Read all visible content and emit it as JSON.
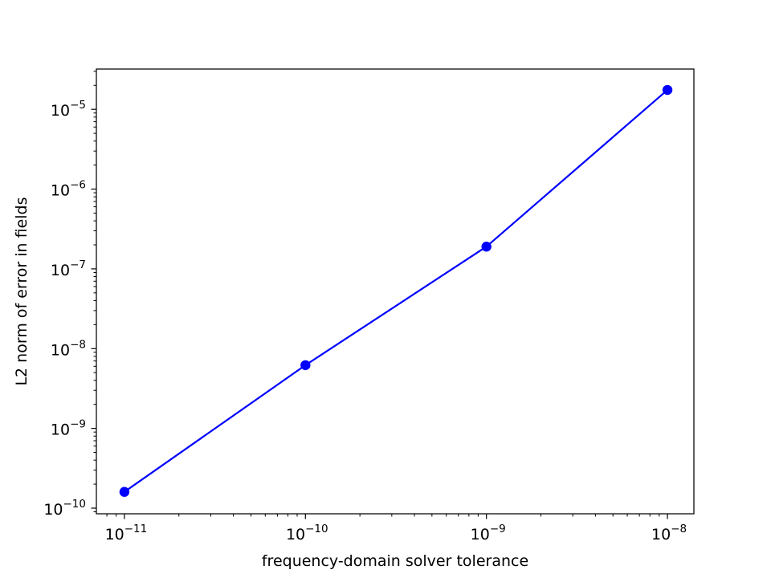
{
  "chart_data": {
    "type": "line",
    "title": "",
    "xlabel": "frequency-domain solver tolerance",
    "ylabel": "L2 norm of error in fields",
    "xscale": "log",
    "yscale": "log",
    "xlim": [
      7e-12,
      1.4e-08
    ],
    "ylim": [
      8.5e-11,
      3.2e-05
    ],
    "grid": false,
    "legend": "none",
    "x_ticks": [
      {
        "base": "10",
        "exp": "−11",
        "value": 1e-11
      },
      {
        "base": "10",
        "exp": "−10",
        "value": 1e-10
      },
      {
        "base": "10",
        "exp": "−9",
        "value": 1e-09
      },
      {
        "base": "10",
        "exp": "−8",
        "value": 1e-08
      }
    ],
    "y_ticks": [
      {
        "base": "10",
        "exp": "−10",
        "value": 1e-10
      },
      {
        "base": "10",
        "exp": "−9",
        "value": 1e-09
      },
      {
        "base": "10",
        "exp": "−8",
        "value": 1e-08
      },
      {
        "base": "10",
        "exp": "−7",
        "value": 1e-07
      },
      {
        "base": "10",
        "exp": "−6",
        "value": 1e-06
      },
      {
        "base": "10",
        "exp": "−5",
        "value": 1e-05
      }
    ],
    "series": [
      {
        "color": "#0000ff",
        "marker": "circle",
        "x": [
          1e-11,
          1e-10,
          1e-09,
          1e-08
        ],
        "y": [
          1.6e-10,
          6.2e-09,
          1.9e-07,
          1.75e-05
        ]
      }
    ]
  }
}
